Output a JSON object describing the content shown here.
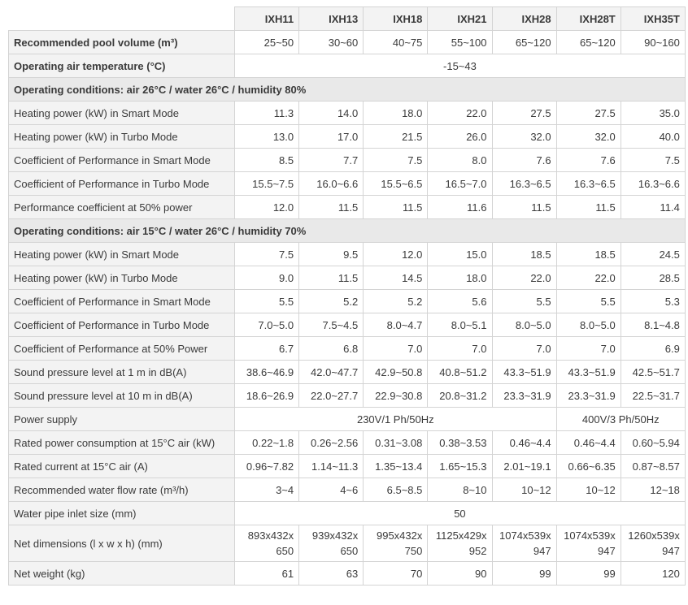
{
  "header": {
    "models": [
      "IXH11",
      "IXH13",
      "IXH18",
      "IXH21",
      "IXH28",
      "IXH28T",
      "IXH35T"
    ]
  },
  "rows": [
    {
      "label": "Recommended pool volume (m³)",
      "values": [
        "25~50",
        "30~60",
        "40~75",
        "55~100",
        "65~120",
        "65~120",
        "90~160"
      ]
    },
    {
      "label": "Operating air temperature (°C)",
      "values": [
        "-15~43"
      ]
    },
    {
      "section": "Operating conditions: air 26°C / water 26°C / humidity 80%"
    },
    {
      "label": "Heating power (kW) in Smart Mode",
      "values": [
        "11.3",
        "14.0",
        "18.0",
        "22.0",
        "27.5",
        "27.5",
        "35.0"
      ]
    },
    {
      "label": "Heating power (kW) in Turbo Mode",
      "values": [
        "13.0",
        "17.0",
        "21.5",
        "26.0",
        "32.0",
        "32.0",
        "40.0"
      ]
    },
    {
      "label": "Coefficient of Performance in Smart Mode",
      "values": [
        "8.5",
        "7.7",
        "7.5",
        "8.0",
        "7.6",
        "7.6",
        "7.5"
      ]
    },
    {
      "label": "Coefficient of Performance in Turbo Mode",
      "values": [
        "15.5~7.5",
        "16.0~6.6",
        "15.5~6.5",
        "16.5~7.0",
        "16.3~6.5",
        "16.3~6.5",
        "16.3~6.6"
      ]
    },
    {
      "label": "Performance coefficient at 50% power",
      "values": [
        "12.0",
        "11.5",
        "11.5",
        "11.6",
        "11.5",
        "11.5",
        "11.4"
      ]
    },
    {
      "section": "Operating conditions: air 15°C / water 26°C / humidity 70%"
    },
    {
      "label": "Heating power (kW) in Smart Mode",
      "values": [
        "7.5",
        "9.5",
        "12.0",
        "15.0",
        "18.5",
        "18.5",
        "24.5"
      ]
    },
    {
      "label": "Heating power (kW) in Turbo Mode",
      "values": [
        "9.0",
        "11.5",
        "14.5",
        "18.0",
        "22.0",
        "22.0",
        "28.5"
      ]
    },
    {
      "label": "Coefficient of Performance in Smart Mode",
      "values": [
        "5.5",
        "5.2",
        "5.2",
        "5.6",
        "5.5",
        "5.5",
        "5.3"
      ]
    },
    {
      "label": "Coefficient of Performance in Turbo Mode",
      "values": [
        "7.0~5.0",
        "7.5~4.5",
        "8.0~4.7",
        "8.0~5.1",
        "8.0~5.0",
        "8.0~5.0",
        "8.1~4.8"
      ]
    },
    {
      "label": "Coefficient of Performance at 50% Power",
      "values": [
        "6.7",
        "6.8",
        "7.0",
        "7.0",
        "7.0",
        "7.0",
        "6.9"
      ]
    },
    {
      "label": "Sound pressure level at 1 m in dB(A)",
      "values": [
        "38.6~46.9",
        "42.0~47.7",
        "42.9~50.8",
        "40.8~51.2",
        "43.3~51.9",
        "43.3~51.9",
        "42.5~51.7"
      ]
    },
    {
      "label": "Sound pressure level at 10 m in dB(A)",
      "values": [
        "18.6~26.9",
        "22.0~27.7",
        "22.9~30.8",
        "20.8~31.2",
        "23.3~31.9",
        "23.3~31.9",
        "22.5~31.7"
      ]
    },
    {
      "label": "Power supply",
      "values": [
        "230V/1 Ph/50Hz",
        "400V/3 Ph/50Hz"
      ]
    },
    {
      "label": "Rated power consumption at 15°C air (kW)",
      "values": [
        "0.22~1.8",
        "0.26~2.56",
        "0.31~3.08",
        "0.38~3.53",
        "0.46~4.4",
        "0.46~4.4",
        "0.60~5.94"
      ]
    },
    {
      "label": "Rated current at 15°C air (A)",
      "values": [
        "0.96~7.82",
        "1.14~11.3",
        "1.35~13.4",
        "1.65~15.3",
        "2.01~19.1",
        "0.66~6.35",
        "0.87~8.57"
      ]
    },
    {
      "label": "Recommended water flow rate (m³/h)",
      "values": [
        "3~4",
        "4~6",
        "6.5~8.5",
        "8~10",
        "10~12",
        "10~12",
        "12~18"
      ]
    },
    {
      "label": "Water pipe inlet size (mm)",
      "values": [
        "50"
      ]
    },
    {
      "label": "Net dimensions (l x w x h) (mm)",
      "values": [
        "893x432x\n650",
        "939x432x\n650",
        "995x432x\n750",
        "1125x429x\n952",
        "1074x539x\n947",
        "1074x539x\n947",
        "1260x539x\n947"
      ]
    },
    {
      "label": "Net weight (kg)",
      "values": [
        "61",
        "63",
        "70",
        "90",
        "99",
        "99",
        "120"
      ]
    }
  ]
}
